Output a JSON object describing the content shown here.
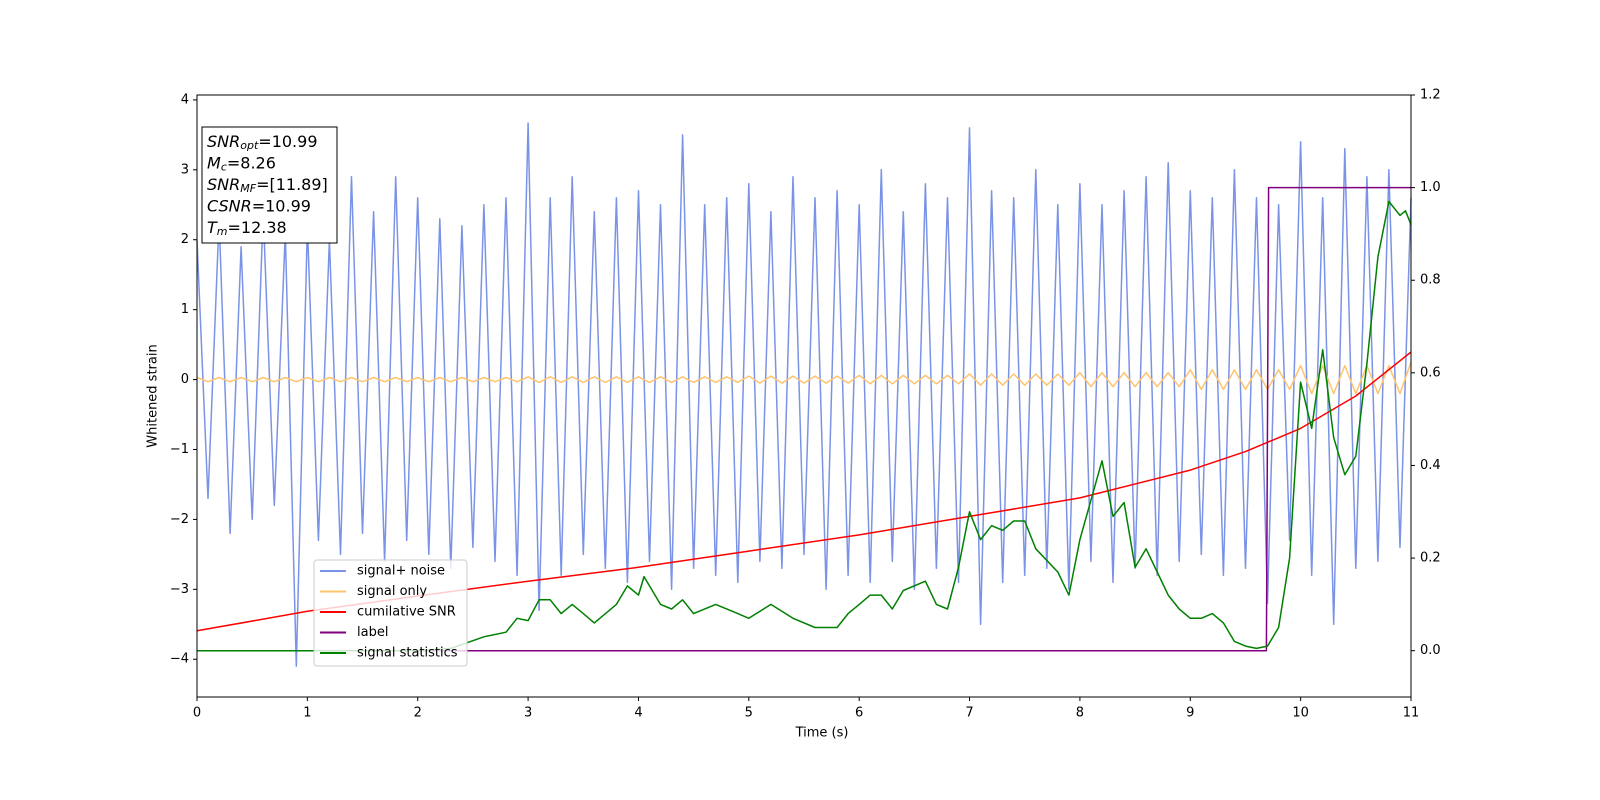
{
  "chart_data": {
    "type": "line",
    "xlabel": "Time (s)",
    "ylabel": "Whitened strain",
    "xlim": [
      0,
      11
    ],
    "ylim": [
      -4.54,
      4.07
    ],
    "y2lim": [
      -0.1,
      1.2
    ],
    "xticks": [
      0,
      1,
      2,
      3,
      4,
      5,
      6,
      7,
      8,
      9,
      10,
      11
    ],
    "yticks": [
      {
        "value": -4,
        "label": "−4"
      },
      {
        "value": -3,
        "label": "−3"
      },
      {
        "value": -2,
        "label": "−2"
      },
      {
        "value": -1,
        "label": "−1"
      },
      0,
      1,
      2,
      3,
      4
    ],
    "y2ticks": [
      {
        "value": 0,
        "label": "0.0"
      },
      0.2,
      0.4,
      0.6,
      0.8,
      {
        "value": 1,
        "label": "1.0"
      },
      1.2
    ],
    "legend": "lower left",
    "annotations": [
      {
        "main": "SNR",
        "sub": "opt",
        "rest": "=10.99"
      },
      {
        "main": "M",
        "sub": "c",
        "rest": "=8.26"
      },
      {
        "main": "SNR",
        "sub": "MF",
        "rest": "=[11.89]"
      },
      {
        "main": "CSNR",
        "rest": "=10.99"
      },
      {
        "main": "T",
        "sub": "m",
        "rest": "=12.38"
      }
    ],
    "x": [
      0,
      0.1,
      0.2,
      0.3,
      0.4,
      0.5,
      0.6,
      0.7,
      0.8,
      0.9,
      1,
      1.1,
      1.2,
      1.3,
      1.4,
      1.5,
      1.6,
      1.7,
      1.8,
      1.9,
      2,
      2.1,
      2.2,
      2.3,
      2.4,
      2.5,
      2.6,
      2.7,
      2.8,
      2.9,
      3,
      3.1,
      3.2,
      3.3,
      3.4,
      3.5,
      3.6,
      3.7,
      3.8,
      3.9,
      4,
      4.1,
      4.2,
      4.3,
      4.4,
      4.5,
      4.6,
      4.7,
      4.8,
      4.9,
      5,
      5.1,
      5.2,
      5.3,
      5.4,
      5.5,
      5.6,
      5.7,
      5.8,
      5.9,
      6,
      6.1,
      6.2,
      6.3,
      6.4,
      6.5,
      6.6,
      6.7,
      6.8,
      6.9,
      7,
      7.1,
      7.2,
      7.3,
      7.4,
      7.5,
      7.6,
      7.7,
      7.8,
      7.9,
      8,
      8.1,
      8.2,
      8.3,
      8.4,
      8.5,
      8.6,
      8.7,
      8.8,
      8.9,
      9,
      9.1,
      9.2,
      9.3,
      9.4,
      9.5,
      9.6,
      9.7,
      9.8,
      9.9,
      10,
      10.1,
      10.2,
      10.3,
      10.4,
      10.5,
      10.6,
      10.7,
      10.8,
      10.9,
      11
    ],
    "series": [
      {
        "name": "signal+ noise",
        "color": "#7b93e6",
        "values": [
          2.0,
          -1.7,
          2.3,
          -2.2,
          1.9,
          -2.0,
          2.4,
          -1.8,
          2.1,
          -4.1,
          2.2,
          -2.3,
          2.0,
          -2.5,
          2.9,
          -2.2,
          2.4,
          -2.6,
          2.9,
          -2.3,
          2.6,
          -2.5,
          2.3,
          -2.7,
          2.2,
          -2.4,
          2.5,
          -2.6,
          2.6,
          -2.8,
          3.67,
          -3.3,
          2.6,
          -2.8,
          2.9,
          -2.5,
          2.4,
          -2.7,
          2.6,
          -2.9,
          2.7,
          -2.6,
          2.5,
          -3.0,
          3.5,
          -2.7,
          2.5,
          -2.8,
          2.6,
          -2.9,
          2.8,
          -2.6,
          2.4,
          -2.7,
          2.9,
          -2.5,
          2.6,
          -3.0,
          2.7,
          -2.8,
          2.5,
          -2.9,
          3.0,
          -2.6,
          2.4,
          -3.0,
          2.8,
          -2.7,
          2.6,
          -2.9,
          3.6,
          -3.5,
          2.7,
          -2.9,
          2.6,
          -2.8,
          3.0,
          -2.7,
          2.5,
          -3.0,
          2.8,
          -2.6,
          2.5,
          -2.9,
          2.7,
          -2.7,
          2.9,
          -2.8,
          3.1,
          -2.6,
          2.7,
          -2.5,
          2.6,
          -2.8,
          3.0,
          -2.7,
          2.6,
          -3.2,
          2.5,
          -2.3,
          3.4,
          -2.8,
          2.6,
          -3.5,
          3.3,
          -2.7,
          2.9,
          -2.6,
          3.0,
          -2.4,
          2.6
        ]
      },
      {
        "name": "signal only",
        "color": "#ffc46e",
        "values": [
          0.03,
          -0.03,
          0.03,
          -0.03,
          0.03,
          -0.03,
          0.03,
          -0.03,
          0.03,
          -0.03,
          0.03,
          -0.03,
          0.03,
          -0.03,
          0.03,
          -0.03,
          0.03,
          -0.03,
          0.03,
          -0.03,
          0.03,
          -0.03,
          0.03,
          -0.03,
          0.03,
          -0.03,
          0.03,
          -0.03,
          0.03,
          -0.03,
          0.04,
          -0.04,
          0.04,
          -0.04,
          0.04,
          -0.04,
          0.04,
          -0.04,
          0.04,
          -0.04,
          0.04,
          -0.04,
          0.04,
          -0.04,
          0.04,
          -0.04,
          0.04,
          -0.04,
          0.04,
          -0.04,
          0.05,
          -0.05,
          0.05,
          -0.05,
          0.05,
          -0.05,
          0.05,
          -0.05,
          0.05,
          -0.05,
          0.06,
          -0.06,
          0.06,
          -0.06,
          0.06,
          -0.06,
          0.06,
          -0.06,
          0.06,
          -0.06,
          0.08,
          -0.08,
          0.08,
          -0.08,
          0.08,
          -0.08,
          0.08,
          -0.08,
          0.08,
          -0.08,
          0.1,
          -0.1,
          0.1,
          -0.1,
          0.1,
          -0.1,
          0.1,
          -0.1,
          0.1,
          -0.1,
          0.14,
          -0.14,
          0.14,
          -0.14,
          0.14,
          -0.14,
          0.14,
          -0.14,
          0.14,
          -0.14,
          0.2,
          -0.2,
          0.2,
          -0.2,
          0.2,
          -0.2,
          0.2,
          -0.2,
          0.2,
          -0.2,
          0.25
        ]
      },
      {
        "name": "cumilative SNR",
        "color": "#ff0000",
        "axis": "y2",
        "x": [
          0,
          1,
          2,
          3,
          4,
          5,
          6,
          7,
          8,
          9,
          9.5,
          10,
          10.5,
          11
        ],
        "values": [
          0.043,
          0.085,
          0.118,
          0.15,
          0.18,
          0.215,
          0.25,
          0.29,
          0.33,
          0.39,
          0.43,
          0.48,
          0.55,
          0.645
        ]
      },
      {
        "name": "label",
        "color": "#800080",
        "axis": "y2",
        "x": [
          0,
          9.69,
          9.71,
          11
        ],
        "values": [
          0,
          0,
          1,
          1
        ]
      },
      {
        "name": "signal statistics",
        "color": "#008000",
        "axis": "y2",
        "x": [
          0,
          0.5,
          1,
          1.5,
          2,
          2.3,
          2.6,
          2.8,
          2.9,
          3.0,
          3.1,
          3.2,
          3.3,
          3.4,
          3.5,
          3.6,
          3.8,
          3.9,
          4.0,
          4.05,
          4.2,
          4.3,
          4.4,
          4.5,
          4.7,
          4.9,
          5.0,
          5.2,
          5.4,
          5.6,
          5.8,
          5.9,
          6.0,
          6.1,
          6.2,
          6.3,
          6.4,
          6.6,
          6.7,
          6.8,
          6.9,
          7.0,
          7.1,
          7.2,
          7.3,
          7.4,
          7.5,
          7.6,
          7.8,
          7.9,
          8.0,
          8.2,
          8.3,
          8.4,
          8.5,
          8.6,
          8.7,
          8.8,
          8.9,
          9.0,
          9.1,
          9.2,
          9.3,
          9.4,
          9.5,
          9.6,
          9.7,
          9.8,
          9.9,
          10.0,
          10.1,
          10.2,
          10.3,
          10.4,
          10.5,
          10.6,
          10.7,
          10.8,
          10.9,
          10.95,
          11.0
        ],
        "values": [
          0,
          0,
          0,
          0,
          0,
          0.005,
          0.03,
          0.04,
          0.07,
          0.065,
          0.11,
          0.11,
          0.08,
          0.1,
          0.08,
          0.06,
          0.1,
          0.14,
          0.12,
          0.16,
          0.1,
          0.09,
          0.11,
          0.08,
          0.1,
          0.08,
          0.07,
          0.1,
          0.07,
          0.05,
          0.05,
          0.08,
          0.1,
          0.12,
          0.12,
          0.09,
          0.13,
          0.15,
          0.1,
          0.09,
          0.18,
          0.3,
          0.24,
          0.27,
          0.26,
          0.28,
          0.28,
          0.22,
          0.17,
          0.12,
          0.24,
          0.41,
          0.29,
          0.32,
          0.18,
          0.22,
          0.17,
          0.12,
          0.09,
          0.07,
          0.07,
          0.08,
          0.06,
          0.02,
          0.01,
          0.005,
          0.01,
          0.05,
          0.2,
          0.58,
          0.48,
          0.65,
          0.46,
          0.38,
          0.42,
          0.62,
          0.85,
          0.97,
          0.94,
          0.95,
          0.92
        ]
      }
    ]
  }
}
